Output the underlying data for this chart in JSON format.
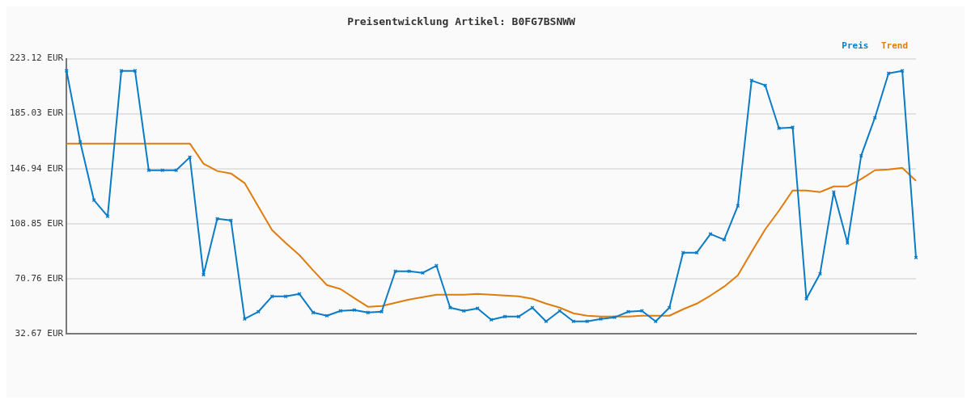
{
  "chart_data": {
    "type": "line",
    "title": "Preisentwicklung Artikel: B0FG7BSNWW",
    "categories": [
      null,
      null,
      null,
      null,
      null,
      null,
      null,
      null,
      null,
      null,
      null,
      null,
      null,
      null,
      null,
      null,
      null,
      null,
      null,
      null,
      null,
      null,
      null,
      null,
      null,
      null,
      null,
      null,
      null,
      null,
      null,
      null,
      null,
      null,
      null,
      null,
      null,
      null,
      null,
      null,
      null,
      null,
      null,
      null,
      null,
      null,
      null,
      null,
      null,
      null,
      null,
      null,
      null,
      null,
      null,
      null,
      null,
      null,
      null,
      null,
      null,
      null,
      null
    ],
    "series": [
      {
        "name": "Preis",
        "color": "#0a7bc7",
        "marker": "cross",
        "values": [
          214.7,
          165.4,
          125.1,
          113.9,
          214.7,
          214.7,
          145.8,
          145.8,
          145.8,
          154.8,
          73.5,
          112.2,
          111.1,
          42.8,
          47.8,
          58.4,
          58.4,
          60.1,
          47.2,
          45.0,
          48.4,
          48.9,
          47.2,
          47.8,
          75.8,
          75.8,
          74.7,
          79.7,
          50.6,
          48.4,
          50.1,
          42.2,
          44.4,
          44.4,
          50.6,
          41.1,
          48.4,
          41.1,
          41.1,
          42.8,
          43.9,
          47.8,
          48.4,
          41.1,
          50.6,
          88.7,
          88.7,
          101.6,
          97.7,
          121.2,
          208.0,
          204.6,
          174.9,
          175.5,
          56.8,
          74.1,
          130.7,
          95.4,
          155.9,
          182.2,
          213.0,
          214.7,
          85.3
        ]
      },
      {
        "name": "Trend",
        "color": "#e07c0c",
        "marker": "none",
        "values": [
          164.3,
          164.3,
          164.3,
          164.3,
          164.3,
          164.3,
          164.3,
          164.3,
          164.3,
          164.3,
          150.3,
          145.3,
          143.6,
          136.9,
          120.6,
          104.4,
          95.4,
          87.0,
          76.4,
          66.3,
          63.5,
          57.3,
          51.2,
          51.7,
          54.0,
          56.2,
          57.9,
          59.6,
          59.6,
          59.6,
          60.1,
          59.6,
          59.0,
          58.4,
          56.8,
          53.4,
          50.6,
          46.7,
          45.0,
          44.4,
          44.4,
          44.4,
          45.0,
          45.0,
          45.0,
          49.5,
          53.4,
          59.0,
          65.2,
          73.0,
          89.3,
          104.9,
          117.8,
          131.8,
          131.8,
          130.7,
          134.6,
          134.6,
          139.7,
          145.8,
          146.4,
          147.5,
          138.5
        ]
      }
    ],
    "ylim": [
      32.67,
      223.12
    ],
    "yticks": [
      {
        "value": 32.67,
        "label": "32.67 EUR"
      },
      {
        "value": 70.76,
        "label": "70.76 EUR"
      },
      {
        "value": 108.85,
        "label": "108.85 EUR"
      },
      {
        "value": 146.94,
        "label": "146.94 EUR"
      },
      {
        "value": 185.03,
        "label": "185.03 EUR"
      },
      {
        "value": 223.12,
        "label": "223.12 EUR"
      }
    ],
    "grid": "y",
    "legend": "top right"
  }
}
